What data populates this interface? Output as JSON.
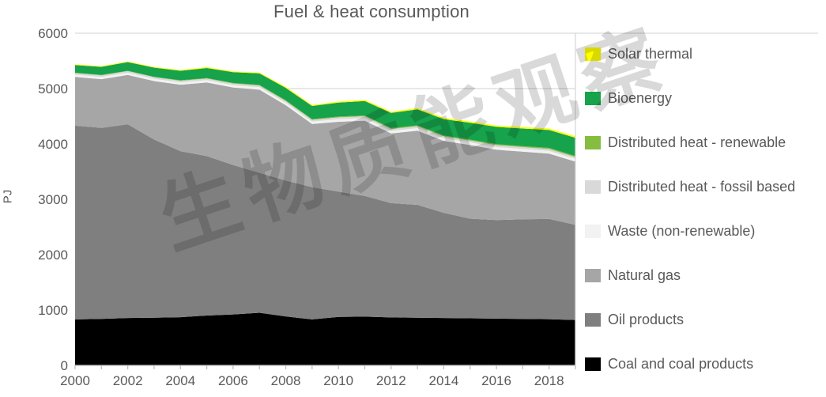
{
  "title": "Fuel & heat consumption",
  "watermark": "生物质能观察",
  "colors": {
    "text": "#595959",
    "gridline": "#D9D9D9",
    "tick": "#BFBFBF",
    "background": "#FFFFFF"
  },
  "legend": {
    "position": "right",
    "items": [
      {
        "label": "Solar thermal",
        "color": "#FFFF00"
      },
      {
        "label": "Bioenergy",
        "color": "#17A24C"
      },
      {
        "label": "Distributed heat - renewable",
        "color": "#84BD3F"
      },
      {
        "label": "Distributed heat - fossil based",
        "color": "#D9D9D9"
      },
      {
        "label": "Waste (non-renewable)",
        "color": "#F2F2F2"
      },
      {
        "label": "Natural gas",
        "color": "#A6A6A6"
      },
      {
        "label": "Oil products",
        "color": "#7F7F7F"
      },
      {
        "label": "Coal and coal products",
        "color": "#000000"
      }
    ]
  },
  "chart_data": {
    "type": "area",
    "stacked": true,
    "title": "Fuel & heat consumption",
    "xlabel": "",
    "ylabel": "PJ",
    "ylim": [
      0,
      6000
    ],
    "yticks": [
      0,
      1000,
      2000,
      3000,
      4000,
      5000,
      6000
    ],
    "xtick_labels": [
      "2000",
      "2002",
      "2004",
      "2006",
      "2008",
      "2010",
      "2012",
      "2014",
      "2016",
      "2018"
    ],
    "grid": "horizontal",
    "legend_position": "right",
    "x": [
      2000,
      2001,
      2002,
      2003,
      2004,
      2005,
      2006,
      2007,
      2008,
      2009,
      2010,
      2011,
      2012,
      2013,
      2014,
      2015,
      2016,
      2017,
      2018,
      2019
    ],
    "series": [
      {
        "name": "Coal and coal products",
        "color": "#000000",
        "values": [
          830,
          840,
          855,
          860,
          870,
          900,
          920,
          950,
          885,
          830,
          875,
          880,
          865,
          860,
          855,
          850,
          845,
          840,
          835,
          820
        ]
      },
      {
        "name": "Oil products",
        "color": "#7F7F7F",
        "values": [
          3500,
          3450,
          3500,
          3220,
          3000,
          2880,
          2700,
          2530,
          2455,
          2390,
          2265,
          2180,
          2065,
          2040,
          1900,
          1800,
          1780,
          1800,
          1810,
          1720
        ]
      },
      {
        "name": "Natural gas",
        "color": "#A6A6A6",
        "values": [
          880,
          880,
          890,
          1055,
          1200,
          1330,
          1400,
          1500,
          1360,
          1140,
          1260,
          1360,
          1260,
          1340,
          1300,
          1330,
          1270,
          1220,
          1180,
          1140
        ]
      },
      {
        "name": "Waste (non-renewable)",
        "color": "#F2F2F2",
        "values": [
          40,
          40,
          40,
          42,
          42,
          42,
          42,
          44,
          44,
          44,
          46,
          46,
          46,
          46,
          46,
          48,
          48,
          48,
          48,
          48
        ]
      },
      {
        "name": "Distributed heat - fossil based",
        "color": "#D9D9D9",
        "values": [
          30,
          30,
          30,
          30,
          30,
          30,
          30,
          32,
          32,
          32,
          34,
          34,
          34,
          34,
          34,
          34,
          35,
          35,
          35,
          35
        ]
      },
      {
        "name": "Distributed heat - renewable",
        "color": "#84BD3F",
        "values": [
          5,
          5,
          6,
          6,
          8,
          8,
          10,
          10,
          12,
          12,
          14,
          14,
          15,
          15,
          16,
          16,
          18,
          18,
          20,
          20
        ]
      },
      {
        "name": "Bioenergy",
        "color": "#17A24C",
        "values": [
          140,
          148,
          158,
          165,
          172,
          182,
          195,
          208,
          225,
          238,
          252,
          262,
          275,
          290,
          298,
          305,
          312,
          318,
          323,
          328
        ]
      },
      {
        "name": "Solar thermal",
        "color": "#FFFF00",
        "values": [
          12,
          12,
          13,
          13,
          14,
          15,
          15,
          16,
          18,
          18,
          20,
          20,
          22,
          22,
          23,
          24,
          25,
          26,
          27,
          28
        ]
      }
    ]
  }
}
